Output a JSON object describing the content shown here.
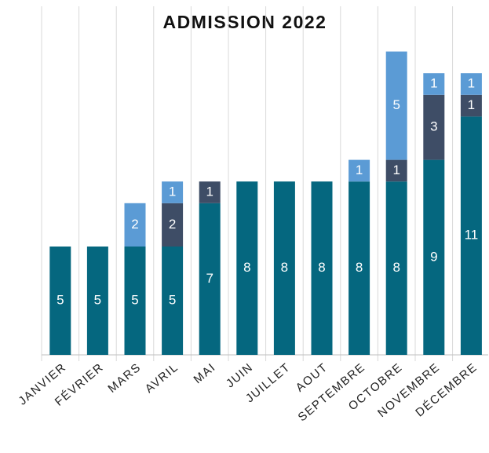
{
  "chart_data": {
    "type": "bar",
    "stacked": true,
    "title": "ADMISSION 2022",
    "categories": [
      "JANVIER",
      "FÉVRIER",
      "MARS",
      "AVRIL",
      "MAI",
      "JUIN",
      "JUILLET",
      "AOUT",
      "SEPTEMBRE",
      "OCTOBRE",
      "NOVEMBRE",
      "DÉCEMBRE"
    ],
    "series": [
      {
        "color": "#05677f",
        "values": [
          5,
          5,
          5,
          5,
          7,
          8,
          8,
          8,
          8,
          8,
          9,
          11
        ]
      },
      {
        "color": "#3e4d66",
        "values": [
          null,
          null,
          null,
          2,
          1,
          null,
          null,
          null,
          null,
          1,
          3,
          1
        ]
      },
      {
        "color": "#5b9bd5",
        "values": [
          null,
          null,
          2,
          1,
          null,
          null,
          null,
          null,
          1,
          5,
          1,
          1
        ]
      }
    ]
  }
}
